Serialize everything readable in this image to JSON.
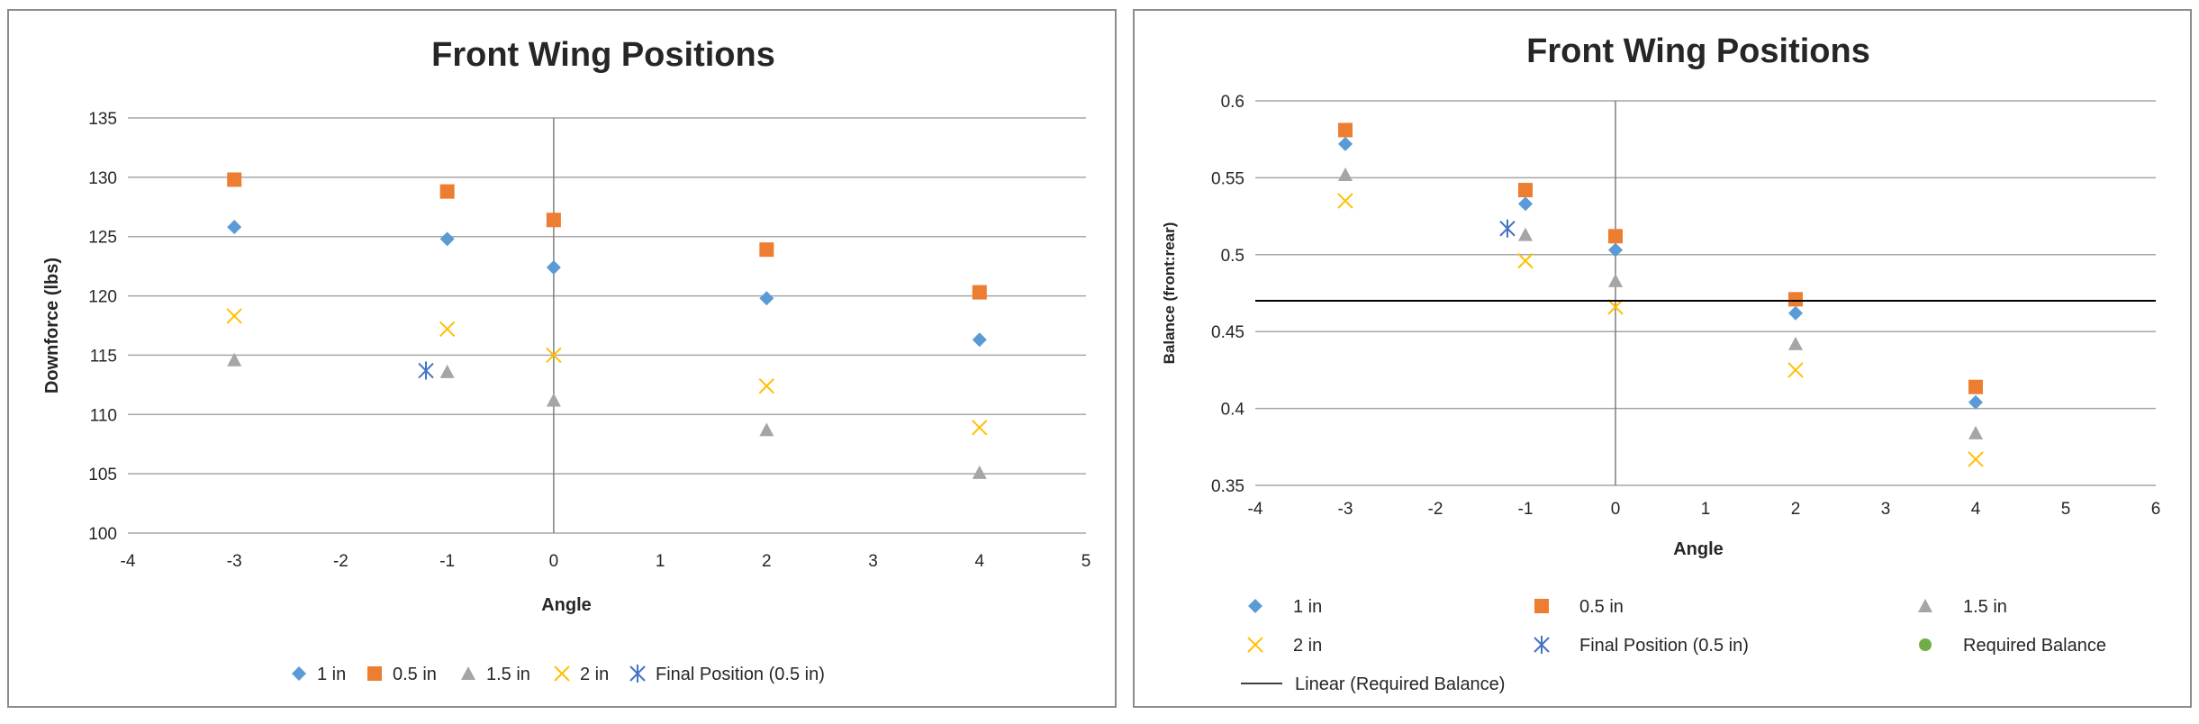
{
  "charts": [
    {
      "title": "Front Wing Positions",
      "xlabel": "Angle",
      "ylabel": "Downforce (lbs)",
      "legend": [
        {
          "label": "1 in",
          "marker": "diamond",
          "color": "#5B9BD5"
        },
        {
          "label": "0.5 in",
          "marker": "square",
          "color": "#ED7D31"
        },
        {
          "label": "1.5 in",
          "marker": "triangle",
          "color": "#A5A5A5"
        },
        {
          "label": "2 in",
          "marker": "x",
          "color": "#FFC000"
        },
        {
          "label": "Final Position (0.5 in)",
          "marker": "asterisk",
          "color": "#4472C4"
        }
      ]
    },
    {
      "title": "Front Wing Positions",
      "xlabel": "Angle",
      "ylabel": "Balance (front:rear)",
      "legend": [
        {
          "label": "1 in",
          "marker": "diamond",
          "color": "#5B9BD5"
        },
        {
          "label": "0.5 in",
          "marker": "square",
          "color": "#ED7D31"
        },
        {
          "label": "1.5 in",
          "marker": "triangle",
          "color": "#A5A5A5"
        },
        {
          "label": "2 in",
          "marker": "x",
          "color": "#FFC000"
        },
        {
          "label": "Final Position (0.5 in)",
          "marker": "asterisk",
          "color": "#4472C4"
        },
        {
          "label": "Required Balance",
          "marker": "circle",
          "color": "#70AD47"
        },
        {
          "label": "Linear (Required Balance)",
          "marker": "line",
          "color": "#000000"
        }
      ]
    }
  ],
  "chart_data": [
    {
      "type": "scatter",
      "title": "Front Wing Positions",
      "xlabel": "Angle",
      "ylabel": "Downforce (lbs)",
      "xlim": [
        -4,
        5
      ],
      "ylim": [
        100,
        135
      ],
      "xticks": [
        -4,
        -3,
        -2,
        -1,
        0,
        1,
        2,
        3,
        4,
        5
      ],
      "yticks": [
        100,
        105,
        110,
        115,
        120,
        125,
        130,
        135
      ],
      "grid": "horizontal major",
      "legend_position": "bottom",
      "series": [
        {
          "name": "1 in",
          "marker": "diamond",
          "color": "#5B9BD5",
          "x": [
            -3,
            -1,
            0,
            2,
            4
          ],
          "y": [
            125.8,
            124.8,
            122.4,
            119.8,
            116.3
          ]
        },
        {
          "name": "0.5 in",
          "marker": "square",
          "color": "#ED7D31",
          "x": [
            -3,
            -1,
            0,
            2,
            4
          ],
          "y": [
            129.8,
            128.8,
            126.4,
            123.9,
            120.3
          ]
        },
        {
          "name": "1.5 in",
          "marker": "triangle",
          "color": "#A5A5A5",
          "x": [
            -3,
            -1,
            0,
            2,
            4
          ],
          "y": [
            114.6,
            113.6,
            111.2,
            108.7,
            105.1
          ]
        },
        {
          "name": "2 in",
          "marker": "x",
          "color": "#FFC000",
          "x": [
            -3,
            -1,
            0,
            2,
            4
          ],
          "y": [
            118.3,
            117.2,
            115.0,
            112.4,
            108.9
          ]
        },
        {
          "name": "Final Position (0.5 in)",
          "marker": "asterisk",
          "color": "#4472C4",
          "x": [
            -1.2
          ],
          "y": [
            113.7
          ]
        }
      ]
    },
    {
      "type": "scatter",
      "title": "Front Wing Positions",
      "xlabel": "Angle",
      "ylabel": "Balance (front:rear)",
      "xlim": [
        -4,
        6
      ],
      "ylim": [
        0.35,
        0.6
      ],
      "xticks": [
        -4,
        -3,
        -2,
        -1,
        0,
        1,
        2,
        3,
        4,
        5,
        6
      ],
      "yticks": [
        0.35,
        0.4,
        0.45,
        0.5,
        0.55,
        0.6
      ],
      "grid": "horizontal major",
      "legend_position": "bottom",
      "series": [
        {
          "name": "1 in",
          "marker": "diamond",
          "color": "#5B9BD5",
          "x": [
            -3,
            -1,
            0,
            2,
            4
          ],
          "y": [
            0.572,
            0.533,
            0.503,
            0.462,
            0.404
          ]
        },
        {
          "name": "0.5 in",
          "marker": "square",
          "color": "#ED7D31",
          "x": [
            -3,
            -1,
            0,
            2,
            4
          ],
          "y": [
            0.581,
            0.542,
            0.512,
            0.471,
            0.414
          ]
        },
        {
          "name": "1.5 in",
          "marker": "triangle",
          "color": "#A5A5A5",
          "x": [
            -3,
            -1,
            0,
            2,
            4
          ],
          "y": [
            0.552,
            0.513,
            0.483,
            0.442,
            0.384
          ]
        },
        {
          "name": "2 in",
          "marker": "x",
          "color": "#FFC000",
          "x": [
            -3,
            -1,
            0,
            2,
            4
          ],
          "y": [
            0.535,
            0.496,
            0.466,
            0.425,
            0.367
          ]
        },
        {
          "name": "Final Position (0.5 in)",
          "marker": "asterisk",
          "color": "#4472C4",
          "x": [
            -1.2
          ],
          "y": [
            0.517
          ]
        },
        {
          "name": "Required Balance",
          "marker": "circle",
          "color": "#70AD47",
          "x": [],
          "y": []
        },
        {
          "name": "Linear (Required Balance)",
          "marker": "line",
          "color": "#000000",
          "x": [
            -4,
            6
          ],
          "y": [
            0.47,
            0.47
          ]
        }
      ]
    }
  ]
}
